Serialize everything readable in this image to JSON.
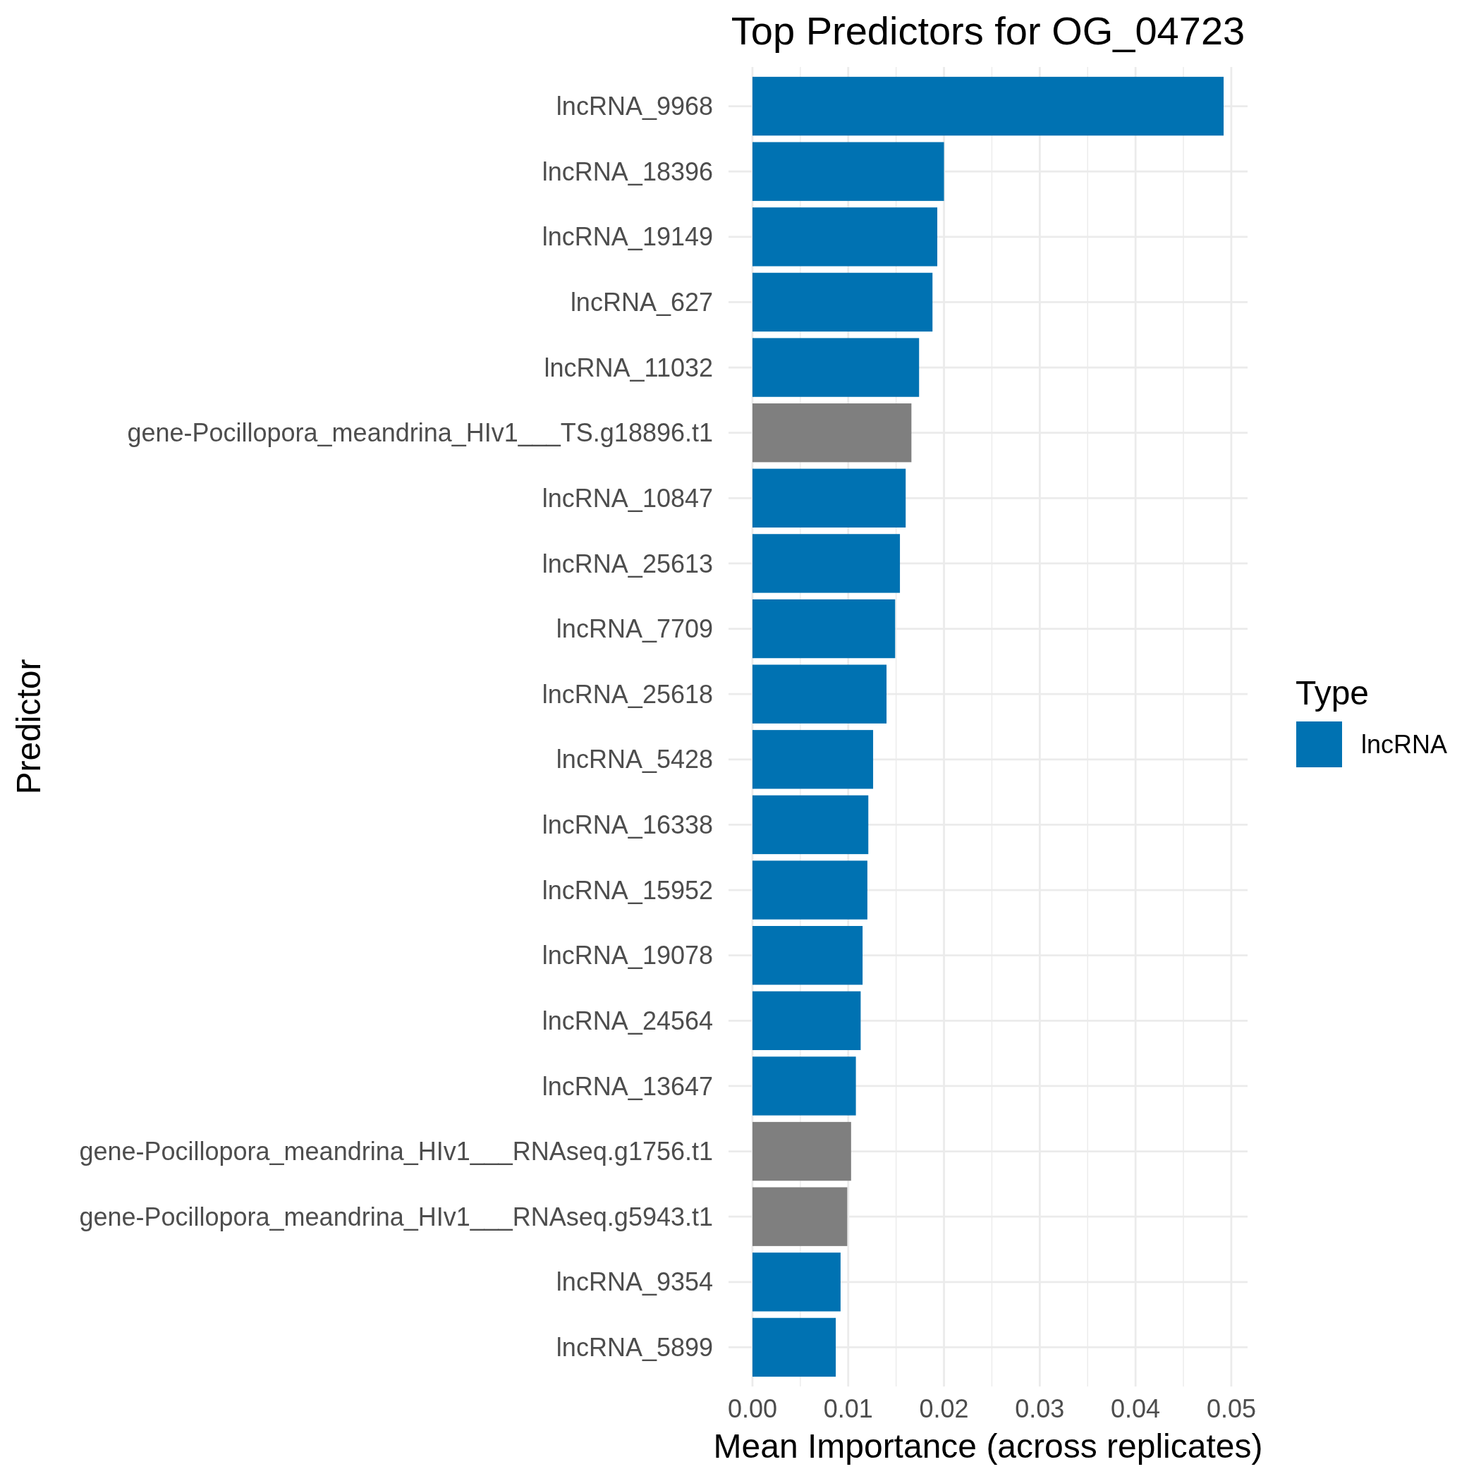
{
  "chart_data": {
    "type": "bar",
    "orientation": "horizontal",
    "stacked": true,
    "title": "Top Predictors for OG_04723",
    "xlabel": "Mean Importance (across replicates)",
    "ylabel": "Predictor",
    "legend_title": "Type",
    "legend": "right",
    "grid": true,
    "categories": [
      "lncRNA_9968",
      "lncRNA_18396",
      "lncRNA_19149",
      "lncRNA_627",
      "lncRNA_11032",
      "gene-Pocillopora_meandrina_HIv1___TS.g18896.t1",
      "lncRNA_10847",
      "lncRNA_25613",
      "lncRNA_7709",
      "lncRNA_25618",
      "lncRNA_5428",
      "lncRNA_16338",
      "lncRNA_15952",
      "lncRNA_19078",
      "lncRNA_24564",
      "lncRNA_13647",
      "gene-Pocillopora_meandrina_HIv1___RNAseq.g1756.t1",
      "gene-Pocillopora_meandrina_HIv1___RNAseq.g5943.t1",
      "lncRNA_9354",
      "lncRNA_5899"
    ],
    "series": [
      {
        "name": "lncRNA",
        "color": "#0072b2",
        "values": [
          0.0492,
          0.02,
          0.0193,
          0.0188,
          0.0174,
          null,
          0.016,
          0.0154,
          0.0149,
          0.014,
          0.0126,
          0.0121,
          0.012,
          0.0115,
          0.0113,
          0.0108,
          null,
          null,
          0.0092,
          0.0087
        ]
      },
      {
        "color": "#7f7f7f",
        "values": [
          null,
          null,
          null,
          null,
          null,
          0.0166,
          null,
          null,
          null,
          null,
          null,
          null,
          null,
          null,
          null,
          null,
          0.0103,
          0.0099,
          null,
          null
        ]
      }
    ],
    "xlim": [
      -0.0025,
      0.0517
    ],
    "xticks": [
      {
        "value": 0,
        "label": "0.00"
      },
      {
        "value": 0.005,
        "label": null
      },
      0.01,
      {
        "value": 0.015,
        "label": null
      },
      0.02,
      {
        "value": 0.025,
        "label": null
      },
      0.03,
      {
        "value": 0.035,
        "label": null
      },
      0.04,
      {
        "value": 0.045,
        "label": null
      },
      0.05
    ]
  }
}
